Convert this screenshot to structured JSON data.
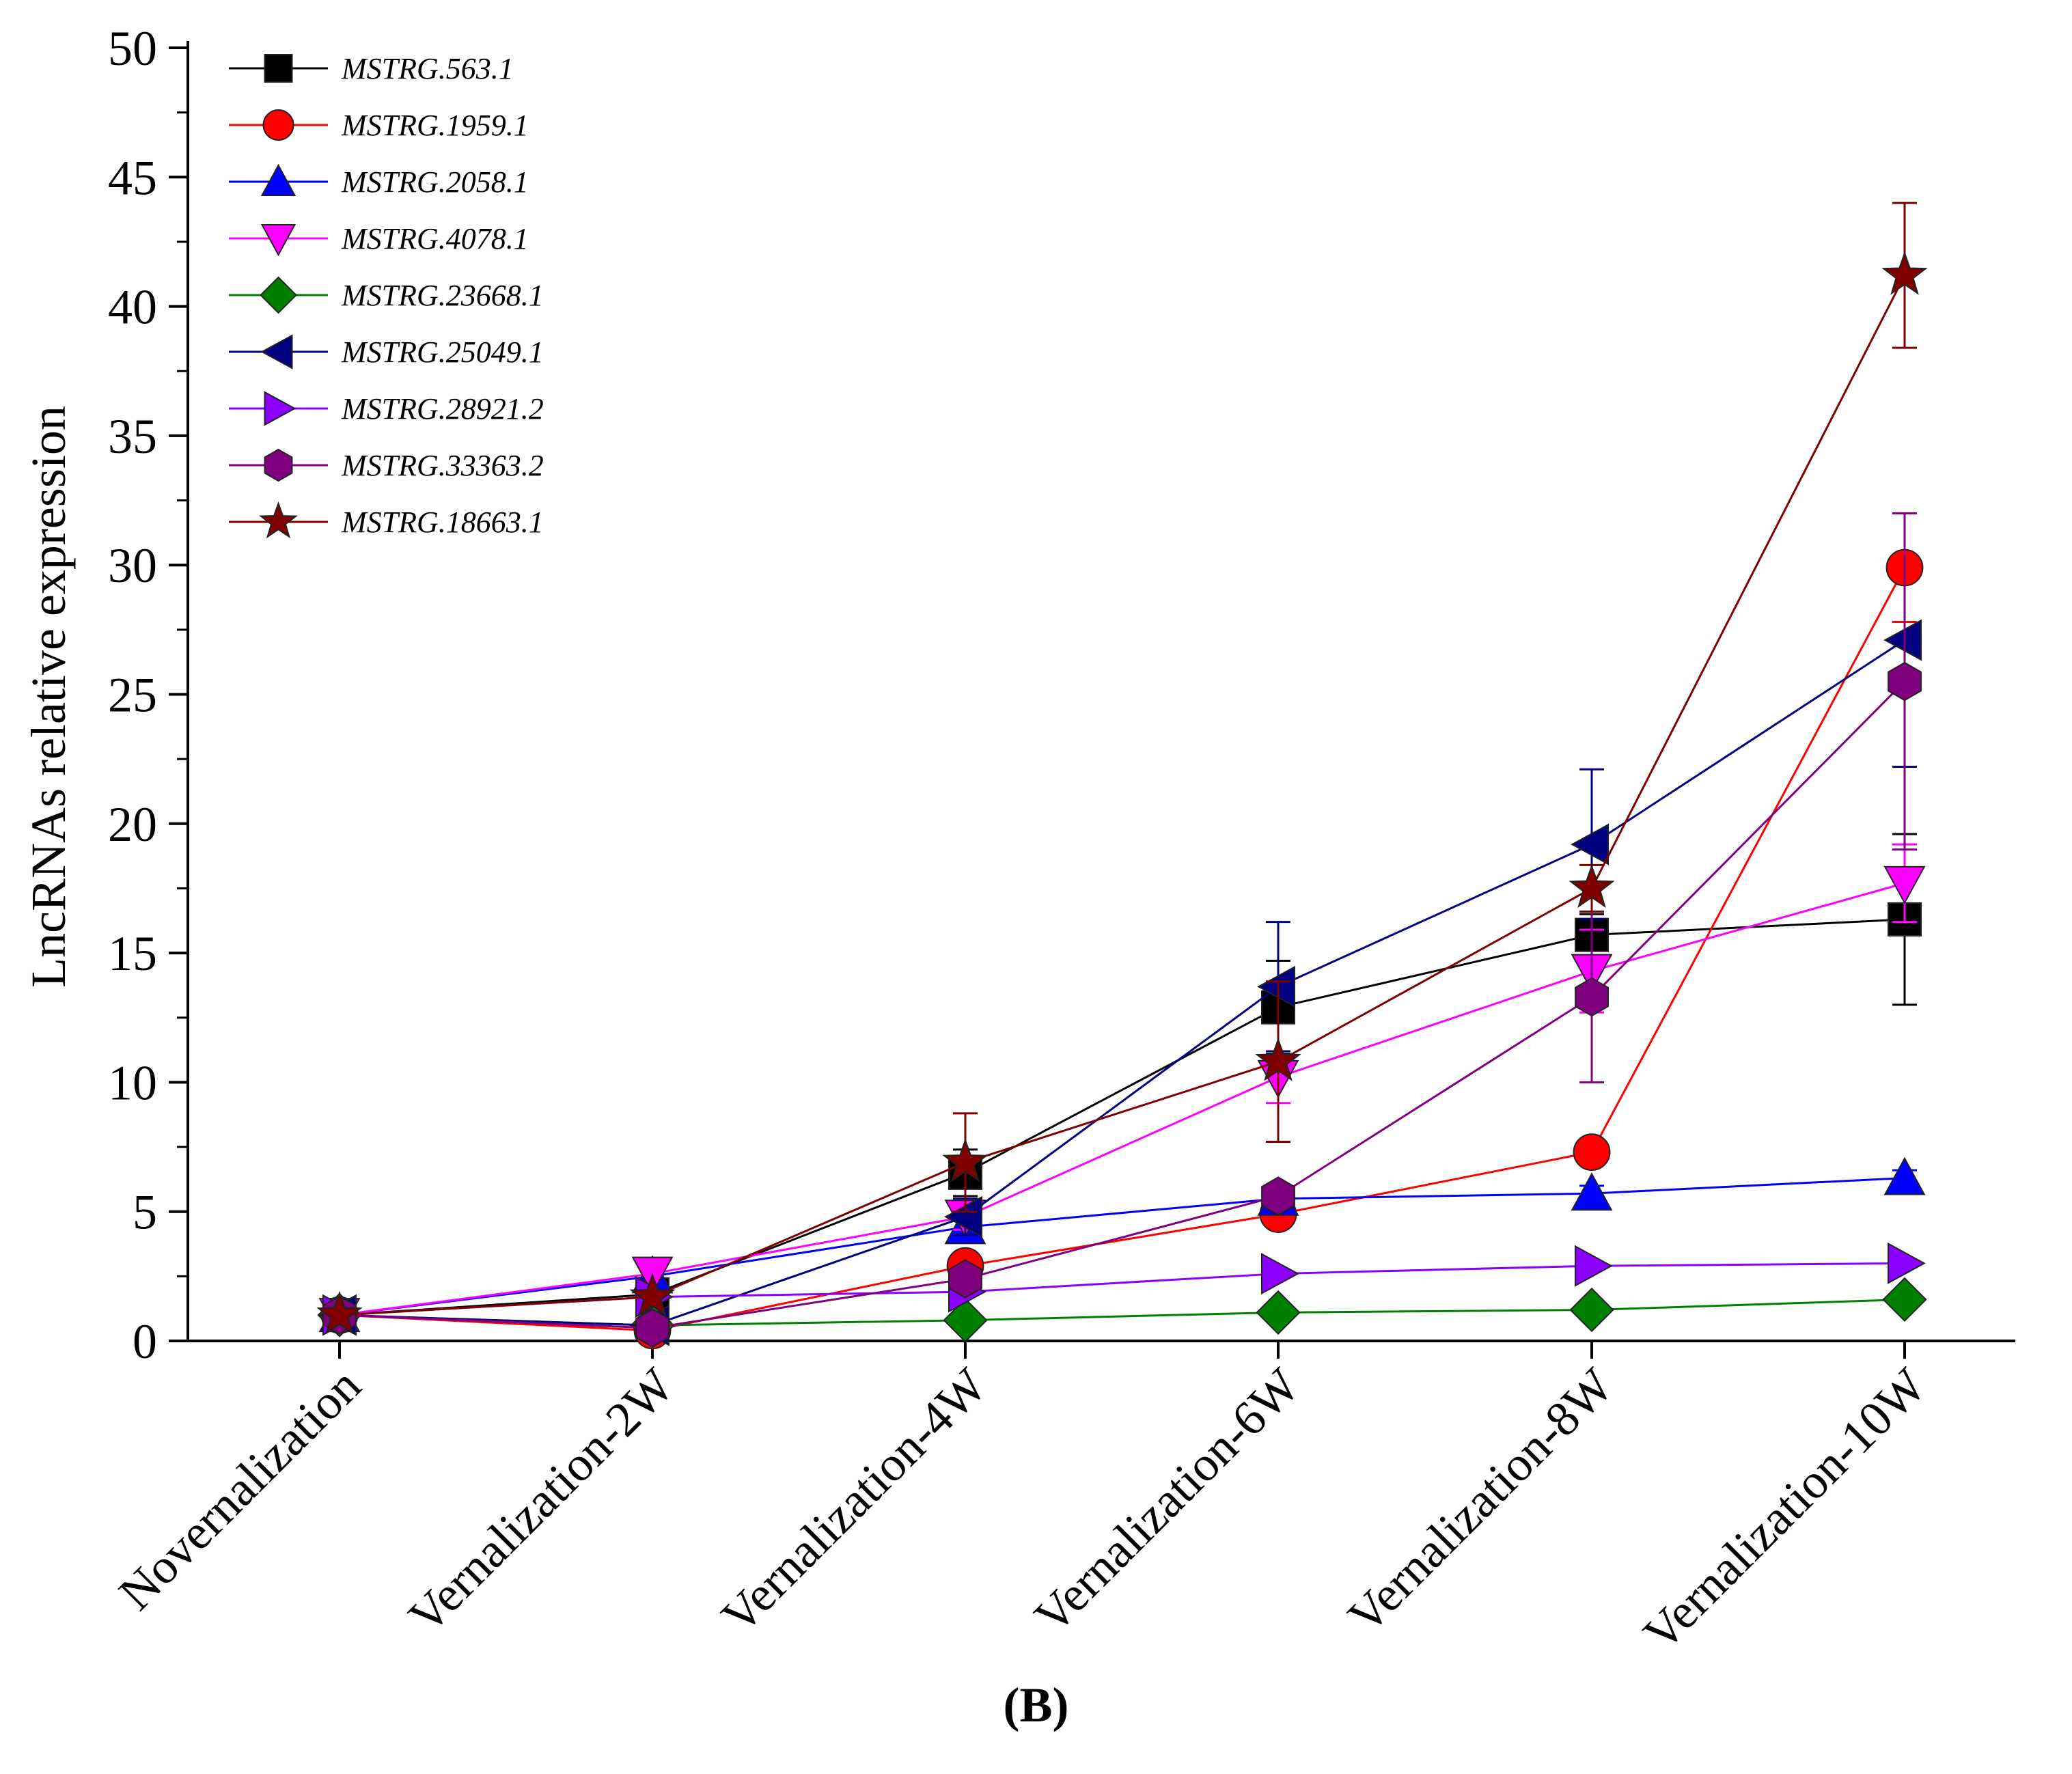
{
  "chart_data": {
    "type": "line",
    "title": "",
    "xlabel": "",
    "ylabel": "LncRNAs relative expression",
    "ylim": [
      0,
      50
    ],
    "yticks": [
      0,
      5,
      10,
      15,
      20,
      25,
      30,
      35,
      40,
      45,
      50
    ],
    "categories": [
      "Novernalization",
      "Vernalization-2W",
      "Vernalization-4W",
      "Vernalization-6W",
      "Vernalization-8W",
      "Vernalization-10W"
    ],
    "legend_position": "top-left",
    "series": [
      {
        "name": "MSTRG.563.1",
        "marker": "square",
        "color": "#000000",
        "values": [
          1.0,
          1.8,
          6.5,
          12.9,
          15.7,
          16.3
        ],
        "errors": [
          0.1,
          0.2,
          0.9,
          1.8,
          0.8,
          3.3
        ]
      },
      {
        "name": "MSTRG.1959.1",
        "marker": "circle",
        "color": "#ff0000",
        "values": [
          1.0,
          0.4,
          2.9,
          4.9,
          7.3,
          29.9
        ],
        "errors": [
          0.1,
          0.1,
          0.4,
          0.4,
          0.4,
          2.1
        ]
      },
      {
        "name": "MSTRG.2058.1",
        "marker": "triangle-up",
        "color": "#0000ff",
        "values": [
          1.0,
          2.5,
          4.4,
          5.5,
          5.7,
          6.3
        ],
        "errors": [
          0.1,
          0.2,
          0.4,
          0.3,
          0.3,
          0.3
        ]
      },
      {
        "name": "MSTRG.4078.1",
        "marker": "triangle-down",
        "color": "#ff00ff",
        "values": [
          1.0,
          2.6,
          4.8,
          10.2,
          14.3,
          17.7
        ],
        "errors": [
          0.1,
          0.2,
          0.5,
          1.0,
          1.6,
          1.5
        ]
      },
      {
        "name": "MSTRG.23668.1",
        "marker": "diamond",
        "color": "#008000",
        "values": [
          1.0,
          0.6,
          0.8,
          1.1,
          1.2,
          1.6
        ],
        "errors": [
          0.1,
          0.1,
          0.1,
          0.1,
          0.1,
          0.1
        ]
      },
      {
        "name": "MSTRG.25049.1",
        "marker": "triangle-left",
        "color": "#000080",
        "values": [
          1.0,
          0.6,
          4.8,
          13.7,
          19.2,
          27.1
        ],
        "errors": [
          0.1,
          0.1,
          0.7,
          2.5,
          2.9,
          4.9
        ]
      },
      {
        "name": "MSTRG.28921.2",
        "marker": "triangle-right",
        "color": "#8b00ff",
        "values": [
          1.0,
          1.7,
          1.9,
          2.6,
          2.9,
          3.0
        ],
        "errors": [
          0.1,
          0.1,
          0.1,
          0.1,
          0.1,
          0.1
        ]
      },
      {
        "name": "MSTRG.33363.2",
        "marker": "hexagon",
        "color": "#800080",
        "values": [
          1.0,
          0.5,
          2.4,
          5.6,
          13.3,
          25.5
        ],
        "errors": [
          0.1,
          0.1,
          0.3,
          0.4,
          3.3,
          6.5
        ]
      },
      {
        "name": "MSTRG.18663.1",
        "marker": "star",
        "color": "#800000",
        "values": [
          1.0,
          1.7,
          6.9,
          10.8,
          17.5,
          41.2
        ],
        "errors": [
          0.1,
          0.2,
          1.9,
          3.1,
          0.9,
          2.8
        ]
      }
    ]
  },
  "panel_label": "(B)"
}
